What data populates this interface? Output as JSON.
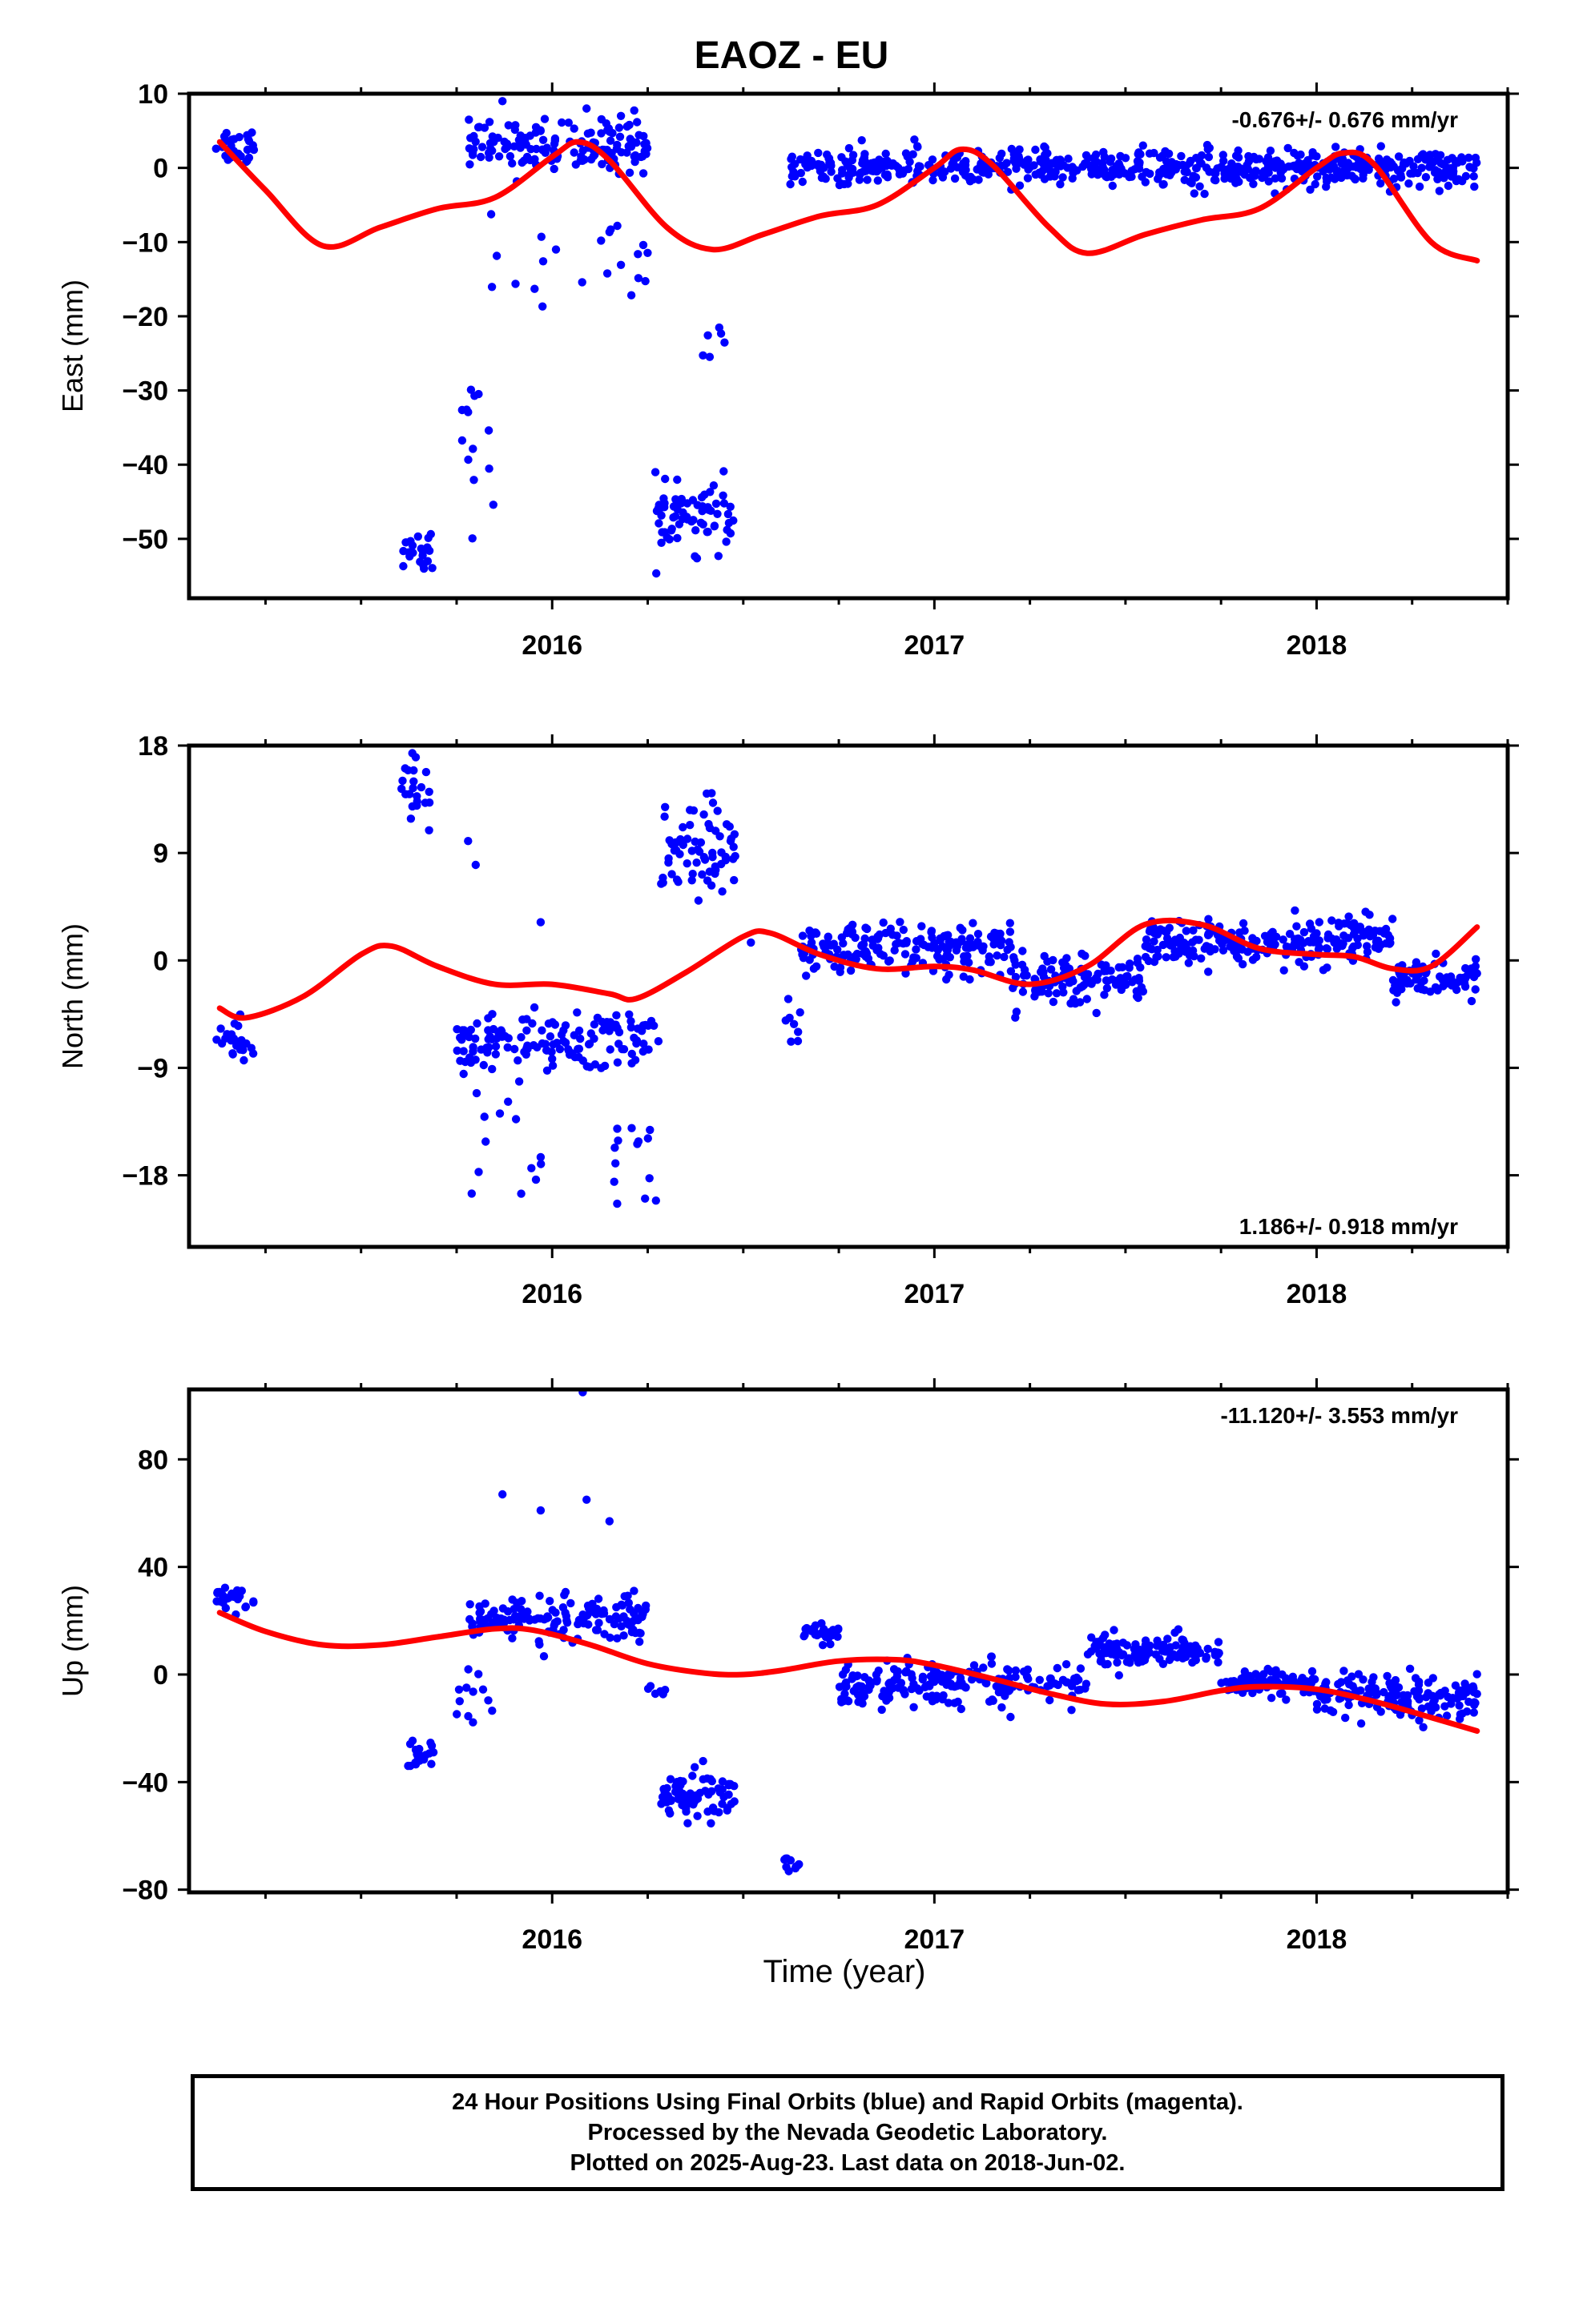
{
  "title": "EAOZ - EU",
  "xlabel": "Time (year)",
  "footer": {
    "line1": "24 Hour Positions Using Final Orbits (blue) and Rapid Orbits (magenta).",
    "line2": "Processed by the Nevada Geodetic Laboratory.",
    "line3": "Plotted on 2025-Aug-23. Last data on 2018-Jun-02."
  },
  "colors": {
    "points": "#0000ff",
    "model": "#ff0000",
    "axes": "#000000"
  },
  "chart_data": [
    {
      "type": "scatter",
      "id": "east",
      "ylabel": "East (mm)",
      "rate_text": "-0.676+/- 0.676 mm/yr",
      "rate_position": "top-right",
      "xlim": [
        2015.05,
        2018.5
      ],
      "ylim": [
        -58,
        10
      ],
      "yticks": [
        10,
        0,
        -10,
        -20,
        -30,
        -40,
        -50
      ],
      "xticks": [
        2016,
        2017,
        2018
      ],
      "xtick_labels": [
        "2016",
        "2017",
        "2018"
      ],
      "grid": false,
      "series": [
        {
          "role": "daily-positions",
          "segments": [
            {
              "from": 2015.12,
              "to": 2015.22,
              "center": 3,
              "spread": 2.5,
              "n": 25
            },
            {
              "from": 2015.61,
              "to": 2015.69,
              "center": -51,
              "spread": 3,
              "n": 22
            },
            {
              "from": 2015.75,
              "to": 2015.87,
              "center": -38,
              "spread": 9,
              "n": 14
            },
            {
              "from": 2015.78,
              "to": 2016.25,
              "center": 3,
              "spread": 3,
              "n": 150
            },
            {
              "from": 2015.8,
              "to": 2016.28,
              "center": -12,
              "spread": 7,
              "n": 22
            },
            {
              "from": 2016.27,
              "to": 2016.48,
              "center": -47,
              "spread": 4,
              "n": 70
            },
            {
              "from": 2016.38,
              "to": 2016.48,
              "center": -24,
              "spread": 3,
              "n": 6
            },
            {
              "from": 2016.62,
              "to": 2018.42,
              "center": 0,
              "spread": 2.2,
              "n": 620
            }
          ],
          "extra_points": [
            [
              2015.87,
              9
            ],
            [
              2016.01,
              -11
            ],
            [
              2016.18,
              7
            ],
            [
              2016.09,
              8
            ]
          ]
        },
        {
          "role": "model-fit",
          "x": [
            2015.13,
            2015.25,
            2015.4,
            2015.55,
            2015.7,
            2015.85,
            2016.0,
            2016.07,
            2016.15,
            2016.3,
            2016.42,
            2016.55,
            2016.7,
            2016.85,
            2017.0,
            2017.07,
            2017.15,
            2017.3,
            2017.4,
            2017.55,
            2017.7,
            2017.85,
            2018.0,
            2018.07,
            2018.15,
            2018.3,
            2018.42
          ],
          "y": [
            3.5,
            -3,
            -10.5,
            -8,
            -5.5,
            -4,
            1.5,
            3.5,
            1,
            -8,
            -11,
            -9,
            -6.5,
            -5,
            0,
            2.5,
            0.5,
            -8,
            -11.5,
            -9,
            -7,
            -5.5,
            0,
            2,
            0.5,
            -10,
            -12.5
          ]
        }
      ]
    },
    {
      "type": "scatter",
      "id": "north",
      "ylabel": "North (mm)",
      "rate_text": "1.186+/- 0.918 mm/yr",
      "rate_position": "bottom-right",
      "xlim": [
        2015.05,
        2018.5
      ],
      "ylim": [
        -24,
        18
      ],
      "yticks": [
        18,
        9,
        0,
        -9,
        -18
      ],
      "xticks": [
        2016,
        2017,
        2018
      ],
      "xtick_labels": [
        "2016",
        "2017",
        "2018"
      ],
      "grid": false,
      "series": [
        {
          "role": "daily-positions",
          "segments": [
            {
              "from": 2015.12,
              "to": 2015.22,
              "center": -6.5,
              "spread": 1.5,
              "n": 25
            },
            {
              "from": 2015.6,
              "to": 2015.69,
              "center": 14.5,
              "spread": 2.5,
              "n": 22
            },
            {
              "from": 2015.75,
              "to": 2016.28,
              "center": -7,
              "spread": 2.5,
              "n": 140
            },
            {
              "from": 2015.76,
              "to": 2015.98,
              "center": -14,
              "spread": 5,
              "n": 15
            },
            {
              "from": 2016.15,
              "to": 2016.28,
              "center": -18,
              "spread": 5,
              "n": 14
            },
            {
              "from": 2016.28,
              "to": 2016.48,
              "center": 9,
              "spread": 4,
              "n": 70
            },
            {
              "from": 2016.6,
              "to": 2016.65,
              "center": -5,
              "spread": 2,
              "n": 8
            },
            {
              "from": 2016.65,
              "to": 2017.2,
              "center": 1,
              "spread": 1.8,
              "n": 190
            },
            {
              "from": 2017.2,
              "to": 2017.55,
              "center": -1.5,
              "spread": 1.8,
              "n": 120
            },
            {
              "from": 2017.55,
              "to": 2018.2,
              "center": 1.5,
              "spread": 1.8,
              "n": 230
            },
            {
              "from": 2018.2,
              "to": 2018.42,
              "center": -1.5,
              "spread": 1.5,
              "n": 80
            }
          ],
          "extra_points": [
            [
              2015.97,
              3.2
            ],
            [
              2016.52,
              1.5
            ],
            [
              2015.78,
              10
            ],
            [
              2015.8,
              8
            ]
          ]
        },
        {
          "role": "model-fit",
          "x": [
            2015.13,
            2015.2,
            2015.35,
            2015.5,
            2015.58,
            2015.7,
            2015.85,
            2016.0,
            2016.15,
            2016.22,
            2016.35,
            2016.5,
            2016.57,
            2016.7,
            2016.85,
            2017.0,
            2017.1,
            2017.25,
            2017.4,
            2017.55,
            2017.7,
            2017.85,
            2018.0,
            2018.1,
            2018.2,
            2018.3,
            2018.42
          ],
          "y": [
            -4,
            -4.8,
            -3,
            0.5,
            1.2,
            -0.5,
            -2,
            -2,
            -2.8,
            -3.2,
            -1,
            2,
            2.3,
            0.5,
            -0.7,
            -0.5,
            -0.8,
            -2,
            -0.5,
            3,
            3,
            1,
            0.5,
            0.3,
            -0.7,
            -0.5,
            2.8
          ]
        }
      ]
    },
    {
      "type": "scatter",
      "id": "up",
      "ylabel": "Up (mm)",
      "rate_text": "-11.120+/- 3.553 mm/yr",
      "rate_position": "top-right",
      "xlim": [
        2015.05,
        2018.5
      ],
      "ylim": [
        -81,
        106
      ],
      "yticks": [
        80,
        40,
        0,
        -40,
        -80
      ],
      "xticks": [
        2016,
        2017,
        2018
      ],
      "xtick_labels": [
        "2016",
        "2017",
        "2018"
      ],
      "grid": false,
      "series": [
        {
          "role": "daily-positions",
          "segments": [
            {
              "from": 2015.12,
              "to": 2015.22,
              "center": 28,
              "spread": 5,
              "n": 25
            },
            {
              "from": 2015.6,
              "to": 2015.69,
              "center": -30,
              "spread": 5,
              "n": 22
            },
            {
              "from": 2015.75,
              "to": 2015.85,
              "center": -10,
              "spread": 12,
              "n": 12
            },
            {
              "from": 2015.78,
              "to": 2016.25,
              "center": 20,
              "spread": 8,
              "n": 150
            },
            {
              "from": 2016.25,
              "to": 2016.3,
              "center": -6,
              "spread": 3,
              "n": 6
            },
            {
              "from": 2016.28,
              "to": 2016.48,
              "center": -46,
              "spread": 8,
              "n": 70
            },
            {
              "from": 2016.6,
              "to": 2016.65,
              "center": -70,
              "spread": 4,
              "n": 10
            },
            {
              "from": 2016.65,
              "to": 2016.75,
              "center": 15,
              "spread": 4,
              "n": 30
            },
            {
              "from": 2016.75,
              "to": 2017.4,
              "center": -3,
              "spread": 7,
              "n": 200
            },
            {
              "from": 2017.4,
              "to": 2017.75,
              "center": 9,
              "spread": 5,
              "n": 130
            },
            {
              "from": 2017.75,
              "to": 2018.0,
              "center": -3,
              "spread": 5,
              "n": 80
            },
            {
              "from": 2018.0,
              "to": 2018.42,
              "center": -8,
              "spread": 7,
              "n": 150
            }
          ],
          "extra_points": [
            [
              2016.08,
              105
            ],
            [
              2015.87,
              67
            ],
            [
              2015.97,
              61
            ],
            [
              2016.09,
              65
            ],
            [
              2016.15,
              57
            ]
          ]
        },
        {
          "role": "model-fit",
          "x": [
            2015.13,
            2015.25,
            2015.4,
            2015.55,
            2015.7,
            2015.85,
            2015.95,
            2016.1,
            2016.25,
            2016.4,
            2016.5,
            2016.6,
            2016.75,
            2016.9,
            2017.0,
            2017.15,
            2017.3,
            2017.45,
            2017.6,
            2017.75,
            2017.85,
            2018.0,
            2018.15,
            2018.3,
            2018.42
          ],
          "y": [
            23,
            16,
            11,
            11,
            14,
            17,
            16.5,
            11,
            4,
            0.5,
            0,
            1.5,
            5,
            5.5,
            3.5,
            -1.5,
            -7,
            -11,
            -10,
            -6,
            -4.5,
            -5.5,
            -10,
            -16,
            -21
          ]
        }
      ]
    }
  ]
}
